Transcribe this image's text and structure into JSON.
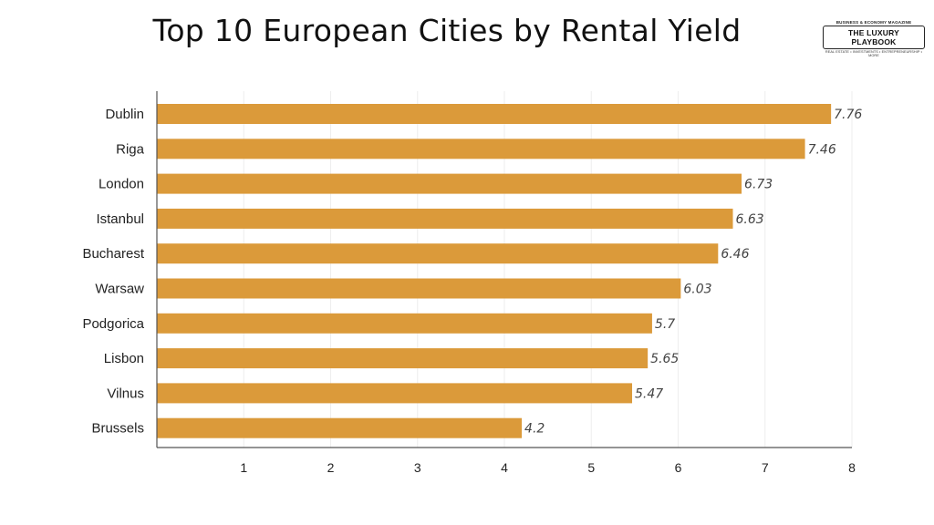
{
  "header": {
    "title": "Top 10 European Cities by Rental Yield"
  },
  "logo": {
    "top": "BUSINESS & ECONOMY MAGAZINE",
    "main": "THE LUXURY PLAYBOOK",
    "bottom": "REAL ESTATE • INVESTMENTS • ENTREPRENEURSHIP • MORE"
  },
  "colors": {
    "bar": "#DB9A3A",
    "axis": "#555555",
    "grid": "#eeeeee"
  },
  "chart_data": {
    "type": "bar",
    "orientation": "horizontal",
    "title": "Top 10 European Cities by Rental Yield",
    "xlabel": "",
    "ylabel": "",
    "categories": [
      "Dublin",
      "Riga",
      "London",
      "Istanbul",
      "Bucharest",
      "Warsaw",
      "Podgorica",
      "Lisbon",
      "Vilnus",
      "Brussels"
    ],
    "values": [
      7.76,
      7.46,
      6.73,
      6.63,
      6.46,
      6.03,
      5.7,
      5.65,
      5.47,
      4.2
    ],
    "value_labels": [
      "7.76",
      "7.46",
      "6.73",
      "6.63",
      "6.46",
      "6.03",
      "5.7",
      "5.65",
      "5.47",
      "4.2"
    ],
    "xlim": [
      0,
      8
    ],
    "ticks": [
      1,
      2,
      3,
      4,
      5,
      6,
      7,
      8
    ],
    "tick_labels": [
      "1",
      "2",
      "3",
      "4",
      "5",
      "6",
      "7",
      "8"
    ],
    "grid": true,
    "legend": "none"
  }
}
